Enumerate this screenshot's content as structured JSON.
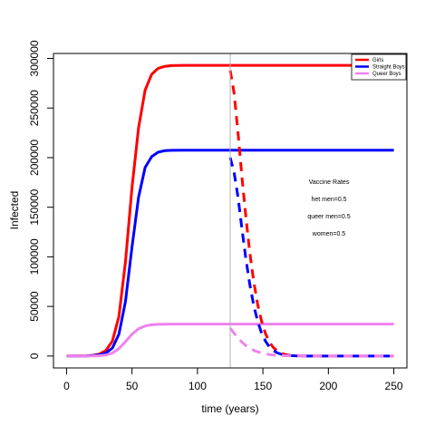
{
  "chart_data": {
    "type": "line",
    "xlabel": "time (years)",
    "ylabel": "Infected",
    "xlim": [
      -10,
      260
    ],
    "ylim": [
      -12000,
      305000
    ],
    "x_ticks": [
      0,
      50,
      100,
      150,
      200,
      250
    ],
    "y_ticks": [
      0,
      50000,
      100000,
      150000,
      200000,
      250000,
      300000
    ],
    "vaccination_time": 125,
    "legend": {
      "position": "top-right",
      "entries": [
        {
          "label": "Girls",
          "color": "#ff0000"
        },
        {
          "label": "Straight Boys",
          "color": "#0000ff"
        },
        {
          "label": "Queer Boys",
          "color": "#ee82ee"
        }
      ]
    },
    "annotations": [
      "Vaccine Rates",
      "het men=0.5",
      "queer men=0.5",
      "women=0.5"
    ],
    "series": [
      {
        "name": "Girls",
        "color": "#ff0000",
        "style": "solid",
        "x": [
          0,
          15,
          20,
          25,
          30,
          35,
          40,
          45,
          50,
          55,
          60,
          65,
          70,
          75,
          80,
          90,
          100,
          125,
          150,
          200,
          250
        ],
        "y": [
          0,
          200,
          700,
          2000,
          5500,
          15000,
          40000,
          95000,
          170000,
          230000,
          268000,
          284000,
          290000,
          292000,
          292800,
          293000,
          293000,
          293000,
          293000,
          293000,
          293000
        ]
      },
      {
        "name": "Straight Boys",
        "color": "#0000ff",
        "style": "solid",
        "x": [
          0,
          15,
          20,
          25,
          30,
          35,
          40,
          45,
          50,
          55,
          60,
          65,
          70,
          75,
          80,
          90,
          100,
          125,
          150,
          200,
          250
        ],
        "y": [
          0,
          100,
          400,
          1200,
          3000,
          8000,
          22000,
          55000,
          110000,
          160000,
          190000,
          201000,
          205500,
          207000,
          207400,
          207500,
          207500,
          207500,
          207500,
          207500,
          207500
        ]
      },
      {
        "name": "Queer Boys",
        "color": "#ee82ee",
        "style": "solid",
        "x": [
          0,
          20,
          25,
          30,
          35,
          40,
          45,
          50,
          55,
          60,
          65,
          70,
          80,
          100,
          125,
          150,
          200,
          250
        ],
        "y": [
          0,
          100,
          300,
          1000,
          3000,
          7500,
          14500,
          22000,
          27500,
          30300,
          31500,
          32000,
          32200,
          32200,
          32200,
          32200,
          32200,
          32200
        ]
      },
      {
        "name": "Girls (vaccinated)",
        "color": "#ff0000",
        "style": "dashed",
        "x": [
          125,
          128,
          131,
          134,
          137,
          140,
          143,
          146,
          149,
          152,
          155,
          158,
          161,
          164,
          167,
          170,
          175,
          180,
          200,
          250
        ],
        "y": [
          288000,
          265000,
          225000,
          180000,
          140000,
          104000,
          75000,
          52000,
          35000,
          22500,
          14000,
          8500,
          5000,
          2800,
          1500,
          800,
          300,
          100,
          0,
          0
        ]
      },
      {
        "name": "Straight Boys (vaccinated)",
        "color": "#0000ff",
        "style": "dashed",
        "x": [
          125,
          128,
          131,
          134,
          137,
          140,
          143,
          146,
          149,
          152,
          155,
          158,
          161,
          164,
          167,
          170,
          175,
          180,
          200,
          250
        ],
        "y": [
          200000,
          185000,
          160000,
          128000,
          98000,
          72000,
          51000,
          35000,
          23000,
          15000,
          9000,
          5500,
          3200,
          1800,
          1000,
          500,
          200,
          50,
          0,
          0
        ]
      },
      {
        "name": "Queer Boys (vaccinated)",
        "color": "#ee82ee",
        "style": "dashed",
        "x": [
          125,
          128,
          131,
          134,
          137,
          140,
          144,
          148,
          152,
          156,
          160,
          165,
          170,
          175,
          180,
          200,
          250
        ],
        "y": [
          28000,
          23000,
          18000,
          14000,
          10500,
          7800,
          5200,
          3400,
          2100,
          1300,
          800,
          400,
          200,
          100,
          50,
          0,
          0
        ]
      }
    ]
  }
}
